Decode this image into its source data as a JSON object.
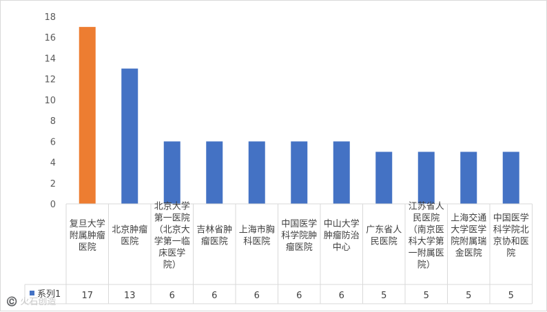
{
  "chart_data": {
    "type": "bar",
    "categories": [
      "复旦大学附属肿瘤医院",
      "北京肿瘤医院",
      "北京大学第一医院（北京大学第一临床医学院）",
      "吉林省肿瘤医院",
      "上海市胸科医院",
      "中国医学科学院肿瘤医院",
      "中山大学肿瘤防治中心",
      "广东省人民医院",
      "江苏省人民医院（南京医科大学第一附属医院）",
      "上海交通大学医学院附属瑞金医院",
      "中国医学科学院北京协和医院"
    ],
    "category_lines": [
      [
        "复旦大学",
        "附属肿瘤",
        "医院"
      ],
      [
        "北京肿瘤",
        "医院"
      ],
      [
        "北京大学",
        "第一医院",
        "（北京大",
        "学第一临",
        "床医学",
        "院）"
      ],
      [
        "吉林省肿",
        "瘤医院"
      ],
      [
        "上海市胸",
        "科医院"
      ],
      [
        "中国医学",
        "科学院肿",
        "瘤医院"
      ],
      [
        "中山大学",
        "肿瘤防治",
        "中心"
      ],
      [
        "广东省人",
        "民医院"
      ],
      [
        "江苏省人",
        "民医院",
        "（南京医",
        "科大学第",
        "一附属医",
        "院）"
      ],
      [
        "上海交通",
        "大学医学",
        "院附属瑞",
        "金医院"
      ],
      [
        "中国医学",
        "科学院北",
        "京协和医",
        "院"
      ]
    ],
    "series": [
      {
        "name": "系列1",
        "values": [
          17,
          13,
          6,
          6,
          6,
          6,
          6,
          5,
          5,
          5,
          5
        ]
      }
    ],
    "ylim": [
      0,
      18
    ],
    "yticks": [
      0,
      2,
      4,
      6,
      8,
      10,
      12,
      14,
      16,
      18
    ],
    "grid": false,
    "data_table": true,
    "colors": {
      "default": "#4472C4",
      "highlight": "#ED7D31",
      "highlight_index": 0
    }
  },
  "watermark": "©️ 火石创造"
}
